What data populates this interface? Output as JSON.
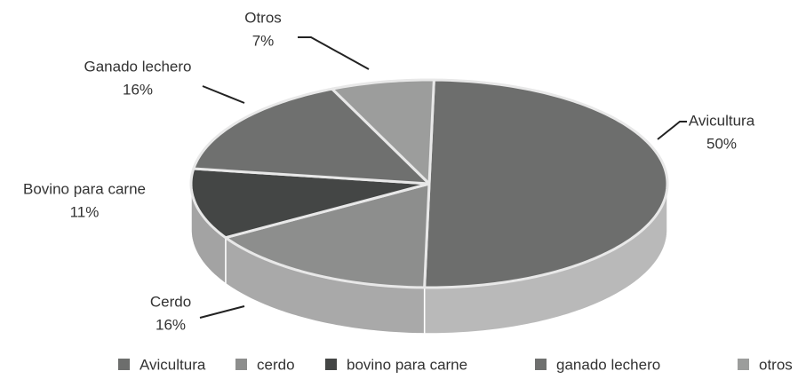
{
  "chart_data": {
    "type": "pie",
    "categories": [
      "Avicultura",
      "Cerdo",
      "Bovino para carne",
      "Ganado lechero",
      "Otros"
    ],
    "values": [
      50,
      16,
      11,
      16,
      7
    ],
    "value_labels": [
      "50%",
      "16%",
      "11%",
      "16%",
      "7%"
    ],
    "legend": [
      "Avicultura",
      "cerdo",
      "bovino para carne",
      "ganado lechero",
      "otros"
    ],
    "colors": [
      "#6d6e6d",
      "#8d8e8d",
      "#444645",
      "#6f706f",
      "#9c9d9c"
    ]
  }
}
